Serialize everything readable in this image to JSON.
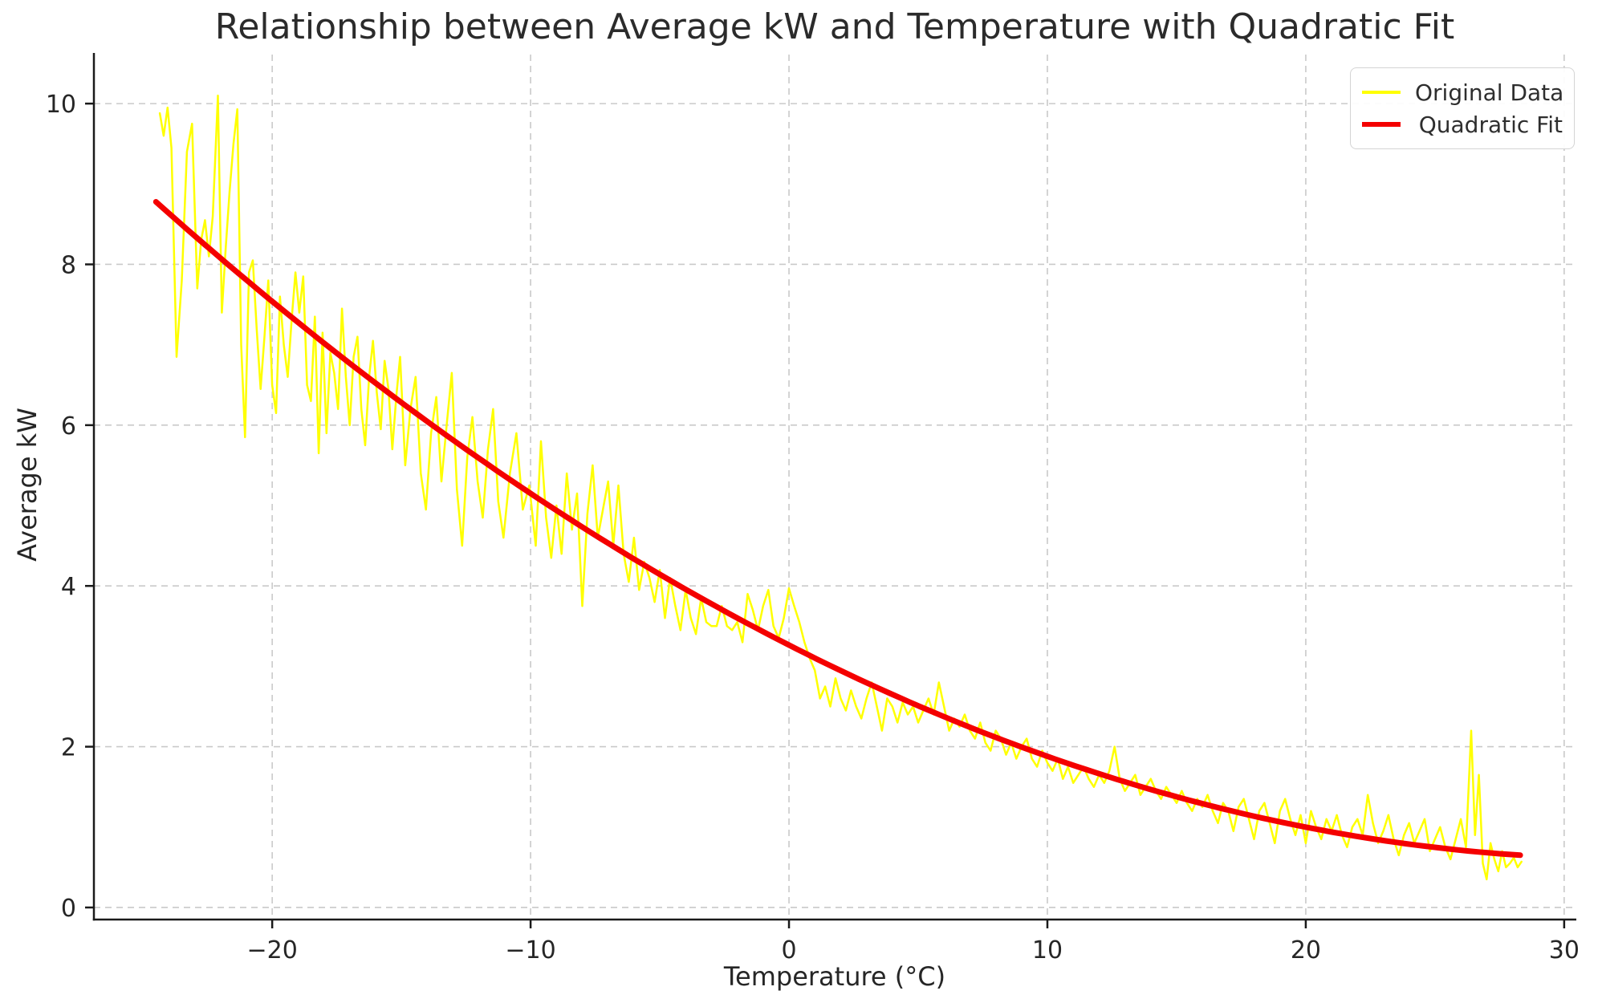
{
  "chart_data": {
    "type": "line",
    "title": "Relationship between Average kW and Temperature with Quadratic Fit",
    "xlabel": "Temperature (°C)",
    "ylabel": "Average kW",
    "xlim": [
      -26.9,
      30.47
    ],
    "ylim": [
      -0.15,
      10.61
    ],
    "xticks": [
      -20,
      -10,
      0,
      10,
      20,
      30
    ],
    "xtick_labels": [
      "−20",
      "−10",
      "0",
      "10",
      "20",
      "30"
    ],
    "yticks": [
      0,
      2,
      4,
      6,
      8,
      10
    ],
    "ytick_labels": [
      "0",
      "2",
      "4",
      "6",
      "8",
      "10"
    ],
    "grid": {
      "visible": true,
      "style": "dashed",
      "color": "#c9c9c9"
    },
    "axis_color": "#1a1a1a",
    "background": "#ffffff",
    "legend": {
      "position": "upper right",
      "entries": [
        {
          "label": "Original Data",
          "color": "#ffff00"
        },
        {
          "label": "Quadratic Fit",
          "color": "#f40000"
        }
      ]
    },
    "series": [
      {
        "name": "Original Data",
        "style": "noisy-line",
        "color": "#ffff00",
        "width": 2.5,
        "x": [
          -24.35,
          -24.2,
          -24.05,
          -23.9,
          -23.7,
          -23.5,
          -23.3,
          -23.1,
          -22.9,
          -22.75,
          -22.6,
          -22.45,
          -22.3,
          -22.1,
          -21.95,
          -21.8,
          -21.65,
          -21.5,
          -21.35,
          -21.2,
          -21.05,
          -20.9,
          -20.75,
          -20.6,
          -20.45,
          -20.3,
          -20.15,
          -20.0,
          -19.85,
          -19.7,
          -19.55,
          -19.4,
          -19.25,
          -19.1,
          -18.95,
          -18.8,
          -18.65,
          -18.5,
          -18.35,
          -18.2,
          -18.05,
          -17.9,
          -17.75,
          -17.6,
          -17.45,
          -17.3,
          -17.15,
          -17.0,
          -16.85,
          -16.7,
          -16.55,
          -16.4,
          -16.25,
          -16.1,
          -15.95,
          -15.8,
          -15.65,
          -15.5,
          -15.35,
          -15.2,
          -15.05,
          -14.85,
          -14.65,
          -14.45,
          -14.25,
          -14.05,
          -13.85,
          -13.65,
          -13.45,
          -13.25,
          -13.05,
          -12.85,
          -12.65,
          -12.45,
          -12.25,
          -12.05,
          -11.85,
          -11.65,
          -11.45,
          -11.25,
          -11.05,
          -10.8,
          -10.55,
          -10.3,
          -10.05,
          -9.8,
          -9.6,
          -9.4,
          -9.2,
          -9.0,
          -8.8,
          -8.6,
          -8.4,
          -8.2,
          -8.0,
          -7.8,
          -7.6,
          -7.4,
          -7.2,
          -7.0,
          -6.8,
          -6.6,
          -6.4,
          -6.2,
          -6.0,
          -5.8,
          -5.6,
          -5.4,
          -5.2,
          -5.0,
          -4.8,
          -4.6,
          -4.4,
          -4.2,
          -4.0,
          -3.8,
          -3.6,
          -3.4,
          -3.2,
          -3.0,
          -2.8,
          -2.6,
          -2.4,
          -2.2,
          -2.0,
          -1.8,
          -1.6,
          -1.4,
          -1.2,
          -1.0,
          -0.8,
          -0.6,
          -0.4,
          -0.2,
          0.0,
          0.2,
          0.4,
          0.6,
          0.8,
          1.0,
          1.2,
          1.4,
          1.6,
          1.8,
          2.0,
          2.2,
          2.4,
          2.6,
          2.8,
          3.0,
          3.2,
          3.4,
          3.6,
          3.8,
          4.0,
          4.2,
          4.4,
          4.6,
          4.8,
          5.0,
          5.2,
          5.4,
          5.6,
          5.8,
          6.0,
          6.2,
          6.4,
          6.6,
          6.8,
          7.0,
          7.2,
          7.4,
          7.6,
          7.8,
          8.0,
          8.2,
          8.4,
          8.6,
          8.8,
          9.0,
          9.2,
          9.4,
          9.6,
          9.8,
          10.0,
          10.2,
          10.4,
          10.6,
          10.8,
          11.0,
          11.2,
          11.4,
          11.6,
          11.8,
          12.0,
          12.2,
          12.4,
          12.6,
          12.8,
          13.0,
          13.2,
          13.4,
          13.6,
          13.8,
          14.0,
          14.2,
          14.4,
          14.6,
          14.8,
          15.0,
          15.2,
          15.4,
          15.6,
          15.8,
          16.0,
          16.2,
          16.4,
          16.6,
          16.8,
          17.0,
          17.2,
          17.4,
          17.6,
          17.8,
          18.0,
          18.2,
          18.4,
          18.6,
          18.8,
          19.0,
          19.2,
          19.4,
          19.6,
          19.8,
          20.0,
          20.2,
          20.4,
          20.6,
          20.8,
          21.0,
          21.2,
          21.4,
          21.6,
          21.8,
          22.0,
          22.2,
          22.4,
          22.6,
          22.8,
          23.0,
          23.2,
          23.4,
          23.6,
          23.8,
          24.0,
          24.2,
          24.4,
          24.6,
          24.8,
          25.0,
          25.2,
          25.4,
          25.6,
          25.8,
          26.0,
          26.2,
          26.4,
          26.55,
          26.7,
          26.85,
          27.0,
          27.15,
          27.3,
          27.45,
          27.6,
          27.75,
          27.9,
          28.05,
          28.2,
          28.35
        ],
        "y": [
          9.88,
          9.6,
          9.95,
          9.45,
          6.85,
          7.8,
          9.4,
          9.75,
          7.7,
          8.3,
          8.55,
          8.1,
          8.6,
          10.1,
          7.4,
          8.2,
          8.9,
          9.5,
          9.93,
          7.0,
          5.85,
          7.9,
          8.05,
          7.2,
          6.45,
          7.1,
          7.8,
          6.5,
          6.15,
          7.6,
          7.0,
          6.6,
          7.3,
          7.9,
          7.4,
          7.85,
          6.5,
          6.3,
          7.35,
          5.65,
          7.15,
          5.9,
          6.9,
          6.65,
          6.2,
          7.45,
          6.6,
          6.0,
          6.85,
          7.1,
          6.2,
          5.75,
          6.6,
          7.05,
          6.4,
          5.95,
          6.8,
          6.45,
          5.7,
          6.35,
          6.85,
          5.5,
          6.2,
          6.6,
          5.4,
          4.95,
          5.9,
          6.35,
          5.3,
          6.0,
          6.65,
          5.2,
          4.5,
          5.6,
          6.1,
          5.3,
          4.85,
          5.7,
          6.2,
          5.05,
          4.6,
          5.4,
          5.9,
          4.95,
          5.25,
          4.5,
          5.8,
          4.85,
          4.35,
          5.0,
          4.4,
          5.4,
          4.7,
          5.15,
          3.75,
          4.9,
          5.5,
          4.6,
          4.95,
          5.3,
          4.5,
          5.25,
          4.4,
          4.05,
          4.6,
          3.95,
          4.3,
          4.1,
          3.8,
          4.2,
          3.6,
          4.1,
          3.75,
          3.45,
          3.95,
          3.6,
          3.4,
          3.85,
          3.55,
          3.5,
          3.5,
          3.75,
          3.5,
          3.45,
          3.55,
          3.3,
          3.9,
          3.7,
          3.45,
          3.75,
          3.95,
          3.5,
          3.35,
          3.6,
          3.97,
          3.75,
          3.55,
          3.3,
          3.1,
          2.95,
          2.6,
          2.75,
          2.5,
          2.85,
          2.6,
          2.45,
          2.7,
          2.5,
          2.35,
          2.6,
          2.8,
          2.5,
          2.2,
          2.6,
          2.5,
          2.3,
          2.55,
          2.4,
          2.5,
          2.3,
          2.45,
          2.6,
          2.4,
          2.8,
          2.5,
          2.2,
          2.35,
          2.25,
          2.4,
          2.2,
          2.1,
          2.3,
          2.05,
          1.95,
          2.2,
          2.1,
          1.9,
          2.05,
          1.85,
          2.0,
          2.1,
          1.85,
          1.75,
          1.95,
          1.8,
          1.7,
          1.85,
          1.6,
          1.75,
          1.55,
          1.65,
          1.75,
          1.6,
          1.5,
          1.65,
          1.55,
          1.7,
          2.0,
          1.6,
          1.45,
          1.55,
          1.65,
          1.4,
          1.5,
          1.6,
          1.45,
          1.35,
          1.5,
          1.4,
          1.3,
          1.45,
          1.3,
          1.2,
          1.35,
          1.25,
          1.4,
          1.2,
          1.05,
          1.3,
          1.2,
          0.95,
          1.25,
          1.35,
          1.1,
          0.85,
          1.2,
          1.3,
          1.05,
          0.8,
          1.2,
          1.35,
          1.1,
          0.9,
          1.15,
          0.8,
          1.2,
          1.0,
          0.85,
          1.1,
          0.95,
          1.15,
          0.9,
          0.75,
          1.0,
          1.1,
          0.9,
          1.4,
          1.05,
          0.8,
          0.95,
          1.15,
          0.85,
          0.65,
          0.9,
          1.05,
          0.8,
          0.95,
          1.1,
          0.7,
          0.85,
          1.0,
          0.75,
          0.6,
          0.85,
          1.1,
          0.75,
          2.2,
          0.9,
          1.65,
          0.55,
          0.35,
          0.8,
          0.6,
          0.45,
          0.7,
          0.5,
          0.55,
          0.62,
          0.5,
          0.57
        ]
      },
      {
        "name": "Quadratic Fit",
        "style": "quadratic-curve",
        "color": "#f40000",
        "width": 7,
        "coefficients": {
          "a": 0.002514,
          "b": -0.1635,
          "c": 3.264
        },
        "x_range": [
          -24.5,
          28.3
        ],
        "endpoint_values": {
          "start": 8.78,
          "end": 0.65
        }
      }
    ]
  }
}
